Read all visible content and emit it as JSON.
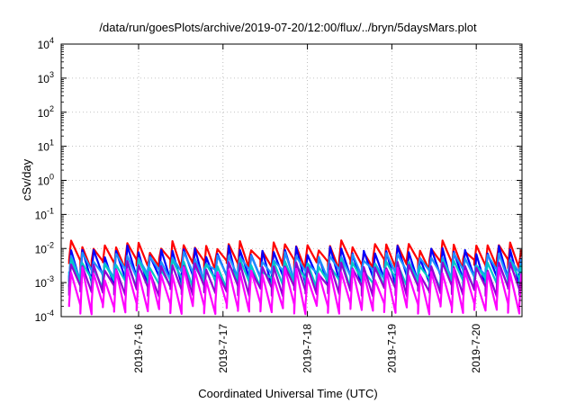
{
  "chart_data": {
    "type": "line",
    "title": "/data/run/goesPlots/archive/2019-07-20/12:00/flux/../bryn/5daysMars.plot",
    "xlabel": "Coordinated Universal Time (UTC)",
    "ylabel": "cSv/day",
    "yscale": "log",
    "ylim": [
      0.0001,
      10000
    ],
    "xlim": [
      "2019-07-15T02:00",
      "2019-07-20T13:00"
    ],
    "y_ticks": [
      {
        "base": "10",
        "exp": "-4"
      },
      {
        "base": "10",
        "exp": "-3"
      },
      {
        "base": "10",
        "exp": "-2"
      },
      {
        "base": "10",
        "exp": "-1"
      },
      {
        "base": "10",
        "exp": "0"
      },
      {
        "base": "10",
        "exp": "1"
      },
      {
        "base": "10",
        "exp": "2"
      },
      {
        "base": "10",
        "exp": "3"
      },
      {
        "base": "10",
        "exp": "4"
      }
    ],
    "x_ticks": [
      "2019-7-16",
      "2019-7-17",
      "2019-7-18",
      "2019-7-19",
      "2019-7-20"
    ],
    "grid": true,
    "series": [
      {
        "color": "#ff0000",
        "peak_median": 0.012,
        "trough_median": 0.0035
      },
      {
        "color": "#0000ff",
        "peak_median": 0.0085,
        "trough_median": 0.0012
      },
      {
        "color": "#1e90ff",
        "peak_median": 0.0055,
        "trough_median": 0.0018
      },
      {
        "color": "#00c8c8",
        "peak_median": 0.0035,
        "trough_median": 0.001
      },
      {
        "color": "#9400d3",
        "peak_median": 0.003,
        "trough_median": 0.0006
      },
      {
        "color": "#ff00ff",
        "peak_median": 0.002,
        "trough_median": 0.00018
      }
    ],
    "cycle_hours": 3.2
  }
}
